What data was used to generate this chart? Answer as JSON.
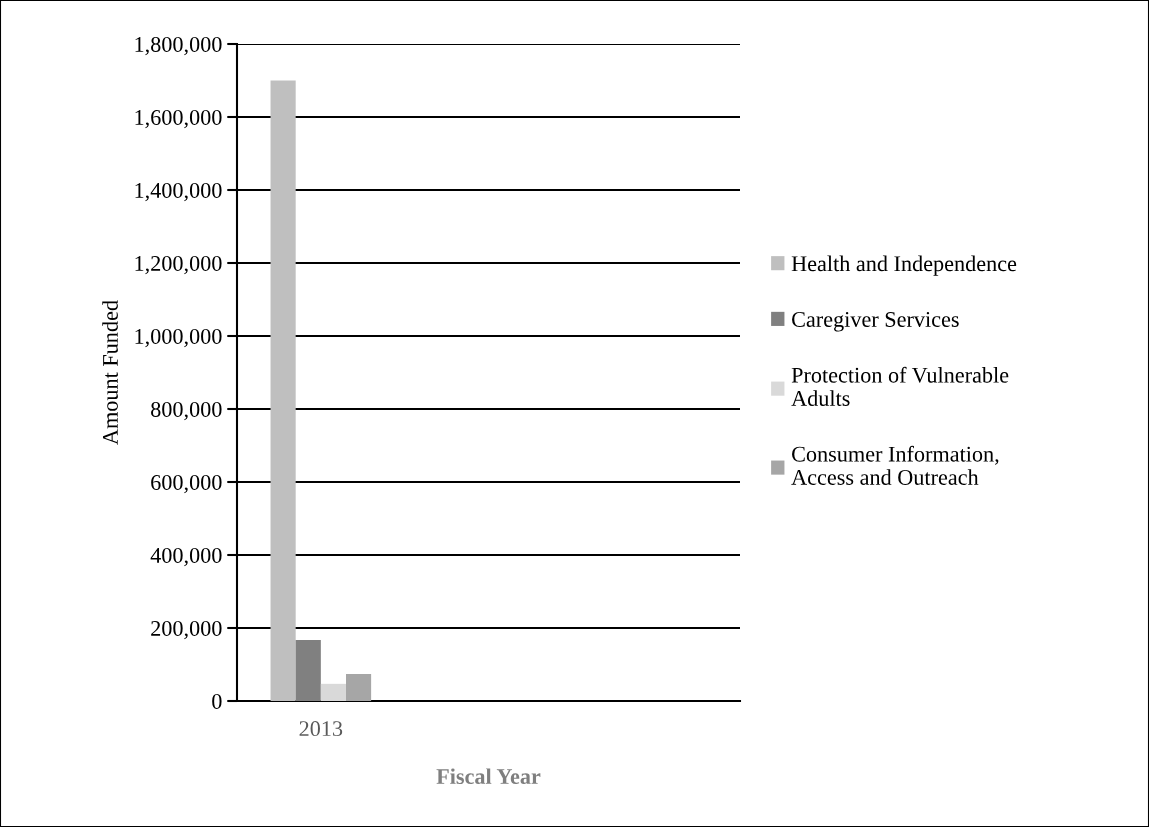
{
  "chart_data": {
    "type": "bar",
    "xlabel": "Fiscal Year",
    "ylabel": "Amount Funded",
    "categories": [
      "2013",
      null,
      null
    ],
    "series": [
      {
        "name": "Health and Independence",
        "color": "#bfbfbf",
        "values": [
          1700000,
          null,
          null
        ]
      },
      {
        "name": "Caregiver Services",
        "color": "#808080",
        "values": [
          167000,
          null,
          null
        ]
      },
      {
        "name": "Protection of Vulnerable Adults",
        "color": "#d9d9d9",
        "values": [
          47000,
          null,
          null
        ]
      },
      {
        "name": "Consumer Information, Access and Outreach",
        "color": "#a6a6a6",
        "values": [
          74000,
          null,
          null
        ]
      }
    ],
    "ylim": [
      0,
      1800000
    ],
    "yticks": [
      {
        "value": 0,
        "label": "0"
      },
      {
        "value": 200000,
        "label": "200,000"
      },
      {
        "value": 400000,
        "label": "400,000"
      },
      {
        "value": 600000,
        "label": "600,000"
      },
      {
        "value": 800000,
        "label": "800,000"
      },
      {
        "value": 1000000,
        "label": "1,000,000"
      },
      {
        "value": 1200000,
        "label": "1,200,000"
      },
      {
        "value": 1400000,
        "label": "1,400,000"
      },
      {
        "value": 1600000,
        "label": "1,600,000"
      },
      {
        "value": 1800000,
        "label": "1,800,000"
      }
    ],
    "grid": "y",
    "legend": "right"
  }
}
